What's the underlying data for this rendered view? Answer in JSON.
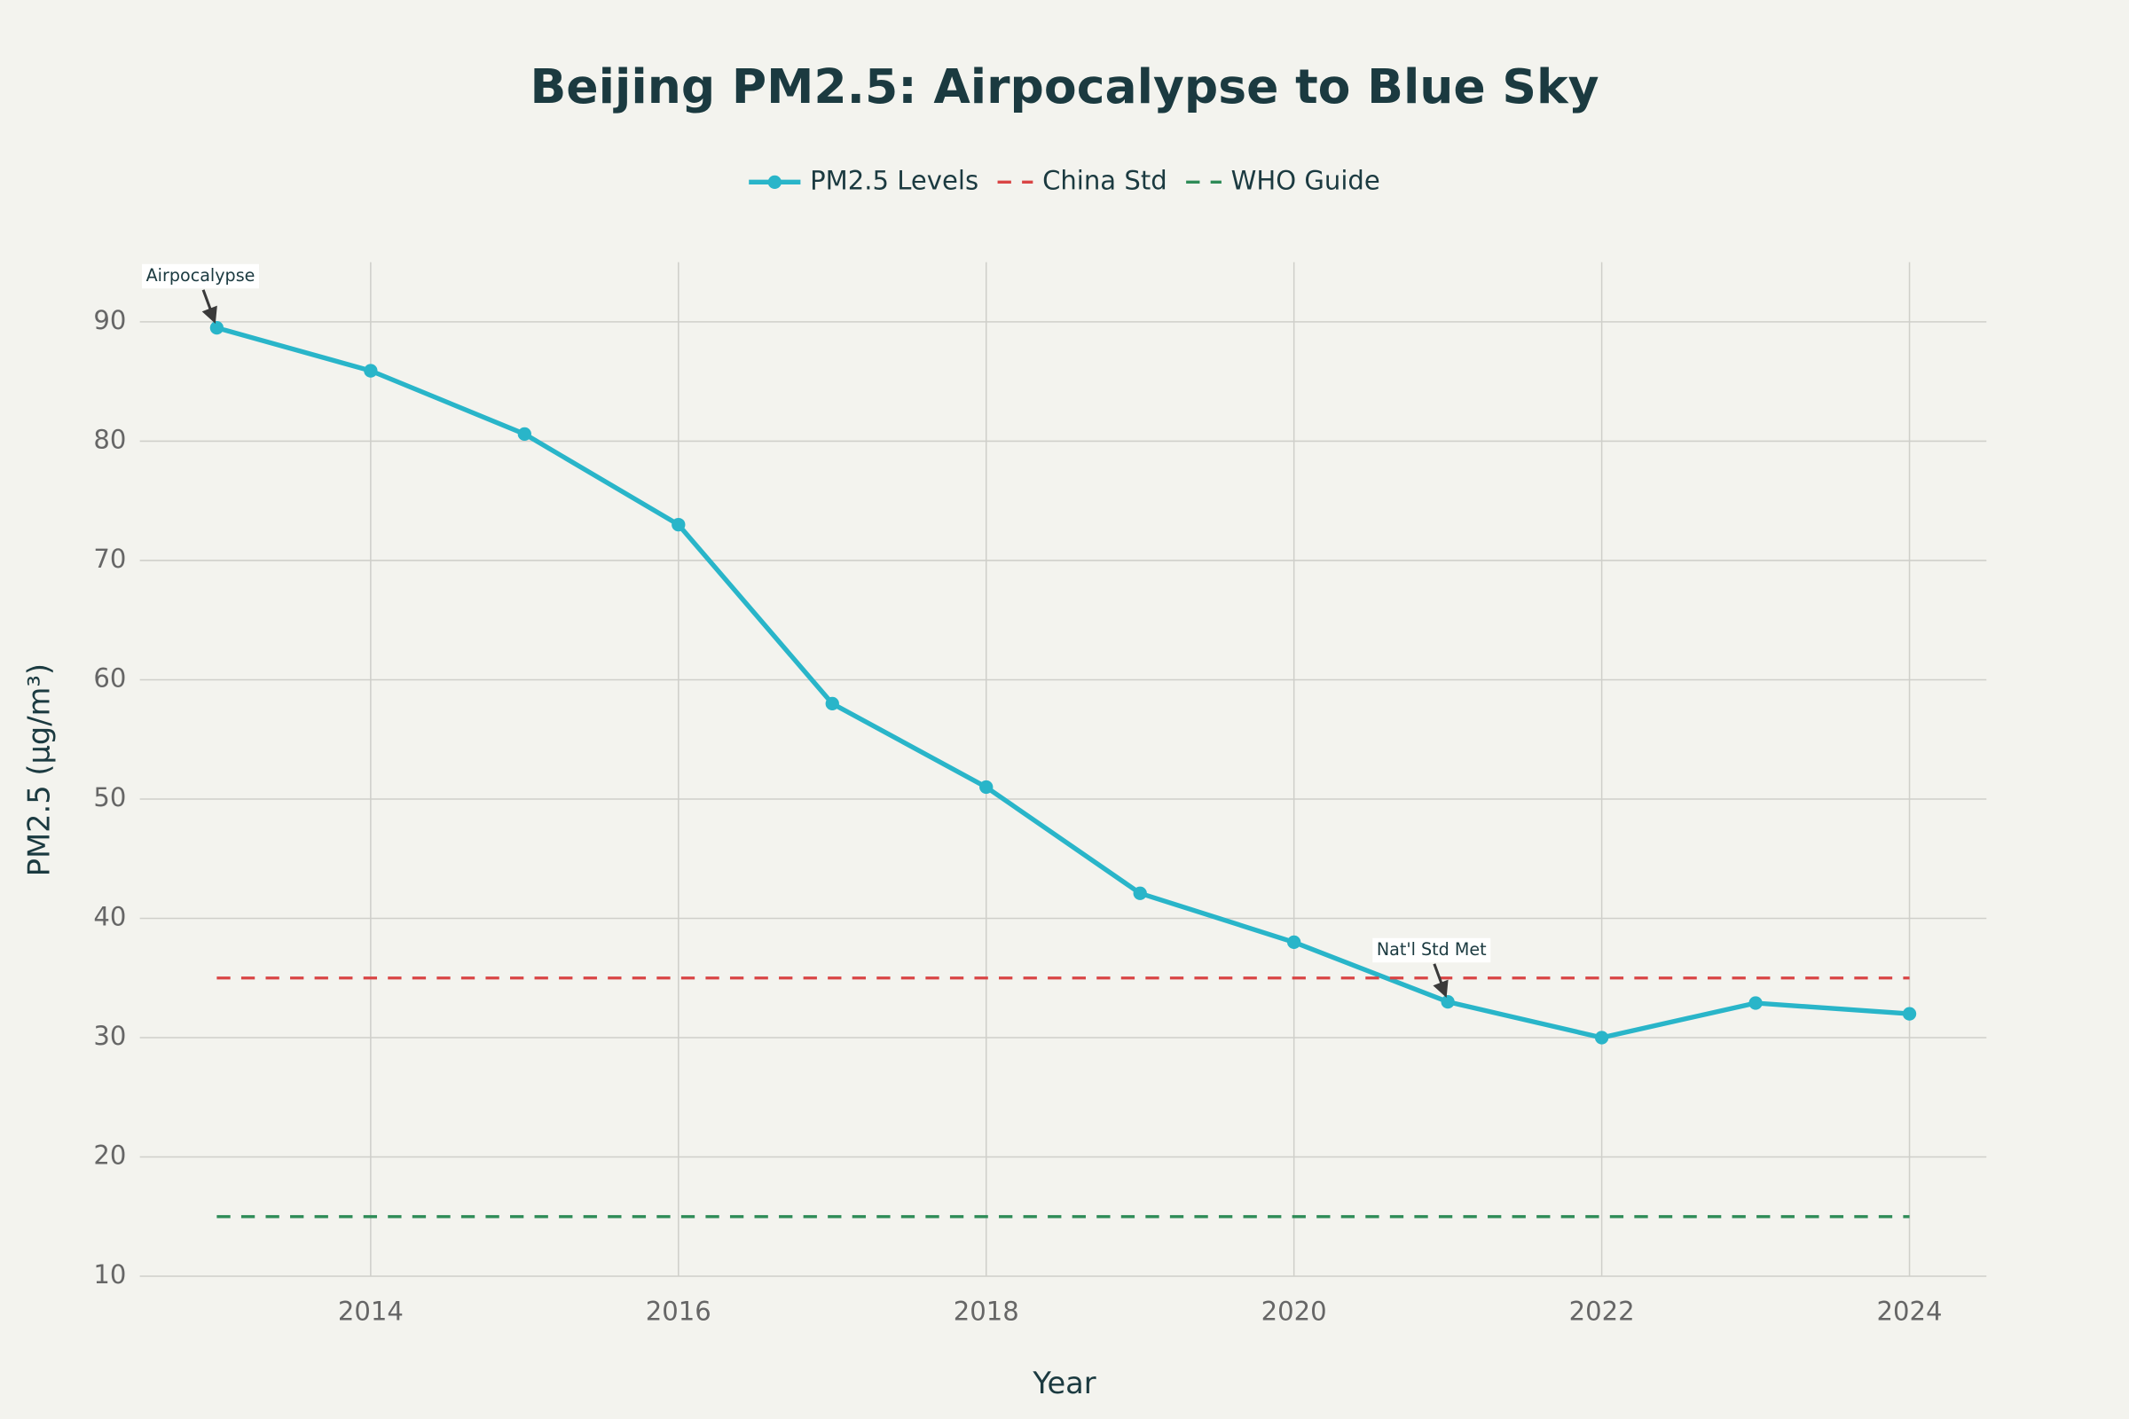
{
  "chart_data": {
    "type": "line",
    "title": "Beijing PM2.5: Airpocalypse to Blue Sky",
    "x_label": "Year",
    "y_label": "PM2.5 (µg/m³)",
    "x": [
      2013,
      2014,
      2015,
      2016,
      2017,
      2018,
      2019,
      2020,
      2021,
      2022,
      2023,
      2024
    ],
    "series": [
      {
        "name": "PM2.5 Levels",
        "color": "#29b5c9",
        "markers": true,
        "dash": false,
        "values": [
          89.5,
          85.9,
          80.6,
          73,
          58,
          51,
          42.1,
          38,
          33,
          30,
          32.9,
          32
        ]
      },
      {
        "name": "China Std",
        "color": "#d94545",
        "markers": false,
        "dash": true,
        "values": [
          35,
          35,
          35,
          35,
          35,
          35,
          35,
          35,
          35,
          35,
          35,
          35
        ]
      },
      {
        "name": "WHO Guide",
        "color": "#2e8b57",
        "markers": false,
        "dash": true,
        "values": [
          15,
          15,
          15,
          15,
          15,
          15,
          15,
          15,
          15,
          15,
          15,
          15
        ]
      }
    ],
    "annotations": [
      {
        "text": "Airpocalypse",
        "x": 2013,
        "y": 89.5
      },
      {
        "text": "Nat'l Std Met",
        "x": 2021,
        "y": 33
      }
    ],
    "xlim": [
      2012.5,
      2024.5
    ],
    "xticks": [
      2014,
      2016,
      2018,
      2020,
      2022,
      2024
    ],
    "ylim": [
      10,
      95
    ],
    "yticks": [
      10,
      20,
      30,
      40,
      50,
      60,
      70,
      80,
      90
    ],
    "grid": true,
    "legend": "top"
  }
}
